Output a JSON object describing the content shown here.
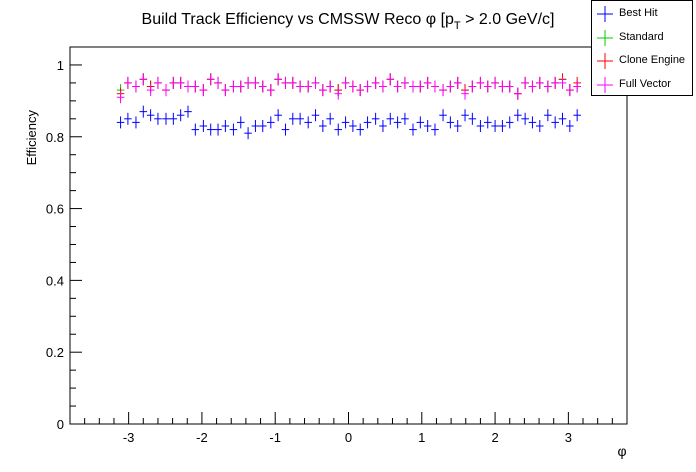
{
  "chart_data": {
    "type": "scatter",
    "title": "Build Track Efficiency vs CMSSW Reco φ [p_T > 2.0 GeV/c]",
    "title_parts": {
      "main": "Build Track Efficiency vs CMSSW Reco ",
      "phi": "φ",
      "open": " [p",
      "sub": "T",
      "close": " > 2.0 GeV/c]"
    },
    "xlabel": "φ",
    "ylabel": "Efficiency",
    "xlim": [
      -3.8,
      3.8
    ],
    "ylim": [
      0,
      1.05
    ],
    "x_ticks": [
      "-3",
      "-2",
      "-1",
      "0",
      "1",
      "2",
      "3"
    ],
    "y_ticks": [
      "0",
      "0.2",
      "0.4",
      "0.6",
      "0.8",
      "1"
    ],
    "legend_position": "top-right",
    "x": [
      -3.11,
      -3.01,
      -2.9,
      -2.8,
      -2.7,
      -2.6,
      -2.49,
      -2.39,
      -2.29,
      -2.19,
      -2.09,
      -1.98,
      -1.88,
      -1.78,
      -1.68,
      -1.57,
      -1.47,
      -1.37,
      -1.27,
      -1.17,
      -1.06,
      -0.96,
      -0.86,
      -0.76,
      -0.66,
      -0.55,
      -0.45,
      -0.35,
      -0.25,
      -0.14,
      -0.04,
      0.06,
      0.16,
      0.26,
      0.37,
      0.47,
      0.57,
      0.67,
      0.77,
      0.88,
      0.98,
      1.08,
      1.18,
      1.29,
      1.39,
      1.49,
      1.59,
      1.69,
      1.8,
      1.9,
      2.0,
      2.1,
      2.2,
      2.31,
      2.41,
      2.51,
      2.61,
      2.72,
      2.82,
      2.92,
      3.02,
      3.12
    ],
    "series": [
      {
        "name": "Best Hit",
        "color": "#0000ff",
        "values": [
          0.84,
          0.85,
          0.84,
          0.87,
          0.86,
          0.85,
          0.85,
          0.85,
          0.86,
          0.87,
          0.82,
          0.83,
          0.82,
          0.82,
          0.83,
          0.82,
          0.84,
          0.81,
          0.83,
          0.83,
          0.84,
          0.86,
          0.82,
          0.85,
          0.85,
          0.84,
          0.86,
          0.83,
          0.85,
          0.82,
          0.84,
          0.83,
          0.82,
          0.84,
          0.85,
          0.83,
          0.85,
          0.84,
          0.85,
          0.82,
          0.84,
          0.83,
          0.82,
          0.86,
          0.84,
          0.83,
          0.86,
          0.85,
          0.83,
          0.84,
          0.83,
          0.83,
          0.84,
          0.86,
          0.85,
          0.84,
          0.83,
          0.86,
          0.84,
          0.85,
          0.83,
          0.86
        ]
      },
      {
        "name": "Standard",
        "color": "#00cc00",
        "values": [
          0.93,
          0.95,
          0.94,
          0.96,
          0.94,
          0.95,
          0.93,
          0.95,
          0.95,
          0.94,
          0.94,
          0.93,
          0.96,
          0.95,
          0.93,
          0.94,
          0.94,
          0.95,
          0.95,
          0.94,
          0.93,
          0.96,
          0.95,
          0.95,
          0.94,
          0.94,
          0.95,
          0.93,
          0.94,
          0.93,
          0.95,
          0.94,
          0.93,
          0.94,
          0.95,
          0.94,
          0.96,
          0.94,
          0.95,
          0.94,
          0.94,
          0.95,
          0.94,
          0.93,
          0.94,
          0.95,
          0.93,
          0.94,
          0.95,
          0.94,
          0.95,
          0.94,
          0.94,
          0.92,
          0.95,
          0.94,
          0.95,
          0.94,
          0.95,
          0.96,
          0.93,
          0.94
        ]
      },
      {
        "name": "Clone Engine",
        "color": "#ff0000",
        "values": [
          0.92,
          0.95,
          0.94,
          0.96,
          0.94,
          0.95,
          0.93,
          0.95,
          0.95,
          0.94,
          0.94,
          0.93,
          0.96,
          0.95,
          0.93,
          0.94,
          0.94,
          0.95,
          0.95,
          0.94,
          0.93,
          0.96,
          0.95,
          0.95,
          0.94,
          0.94,
          0.95,
          0.93,
          0.94,
          0.93,
          0.95,
          0.94,
          0.93,
          0.94,
          0.95,
          0.94,
          0.96,
          0.94,
          0.95,
          0.94,
          0.94,
          0.95,
          0.94,
          0.93,
          0.94,
          0.95,
          0.93,
          0.94,
          0.95,
          0.94,
          0.95,
          0.94,
          0.94,
          0.92,
          0.95,
          0.94,
          0.95,
          0.94,
          0.95,
          0.96,
          0.93,
          0.95
        ]
      },
      {
        "name": "Full Vector",
        "color": "#ff00ff",
        "values": [
          0.91,
          0.95,
          0.94,
          0.96,
          0.93,
          0.95,
          0.93,
          0.95,
          0.95,
          0.94,
          0.94,
          0.93,
          0.96,
          0.95,
          0.93,
          0.94,
          0.94,
          0.95,
          0.95,
          0.94,
          0.93,
          0.96,
          0.95,
          0.95,
          0.94,
          0.94,
          0.95,
          0.93,
          0.94,
          0.92,
          0.95,
          0.94,
          0.93,
          0.94,
          0.95,
          0.94,
          0.96,
          0.94,
          0.95,
          0.94,
          0.94,
          0.95,
          0.94,
          0.93,
          0.94,
          0.95,
          0.92,
          0.94,
          0.95,
          0.94,
          0.95,
          0.94,
          0.94,
          0.92,
          0.95,
          0.94,
          0.95,
          0.94,
          0.95,
          0.95,
          0.93,
          0.94
        ]
      }
    ]
  }
}
